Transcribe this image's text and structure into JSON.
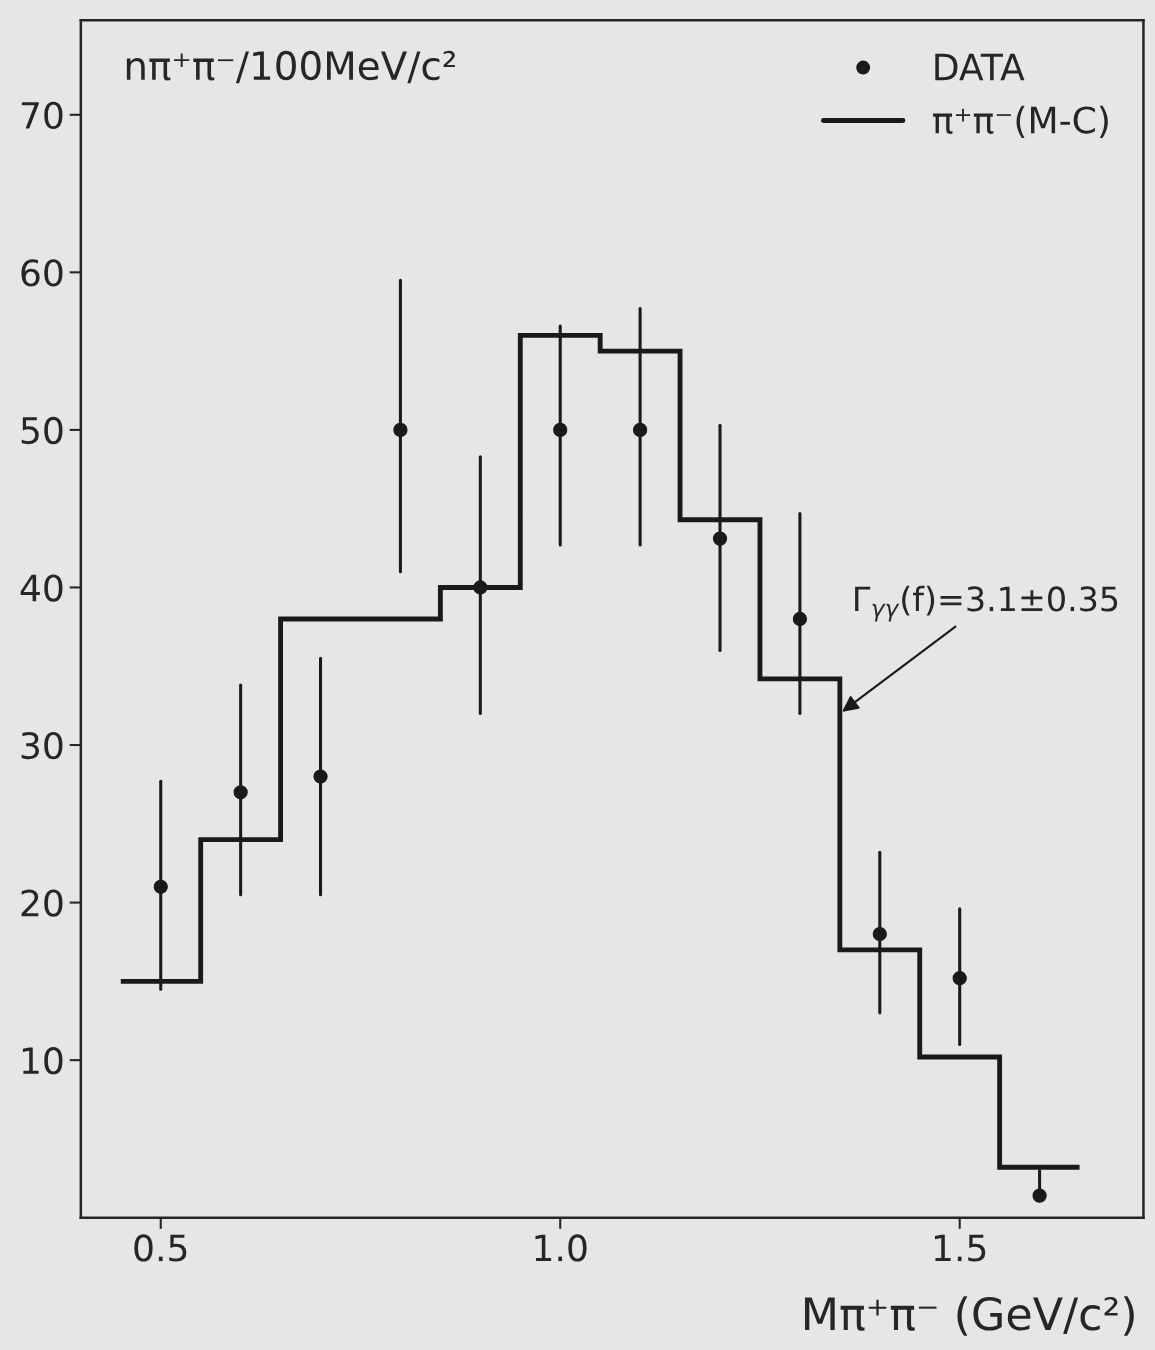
{
  "chart_data": {
    "type": "histogram",
    "ylabel": "nπ⁺π⁻/100MeV/c²",
    "xlabel": "Mπ⁺π⁻ (GeV/c²)",
    "xlim": [
      0.4,
      1.73
    ],
    "ylim": [
      0,
      76
    ],
    "xticks": [
      {
        "value": 0.5,
        "label": "0.5"
      },
      {
        "value": 1.0,
        "label": "1.0"
      },
      {
        "value": 1.5,
        "label": "1.5"
      }
    ],
    "yticks": [
      10,
      20,
      30,
      40,
      50,
      60,
      70
    ],
    "grid": false,
    "legend": "top right",
    "marker": "circle",
    "series": [
      {
        "type": "scatter",
        "name": "DATA",
        "color": "#1a1a1a",
        "x": [
          0.5,
          0.6,
          0.7,
          0.8,
          0.9,
          1.0,
          1.1,
          1.2,
          1.3,
          1.4,
          1.5,
          1.6
        ],
        "values": [
          21,
          27,
          28,
          50,
          40,
          50,
          50,
          43.1,
          38,
          18,
          15.2,
          1.4
        ],
        "errors": [
          [
            14.5,
            27.7
          ],
          [
            20.5,
            33.8
          ],
          [
            20.5,
            35.5
          ],
          [
            41,
            59.5
          ],
          [
            32,
            48.3
          ],
          [
            42.7,
            56.6
          ],
          [
            42.7,
            57.7
          ],
          [
            36,
            50.3
          ],
          [
            32,
            44.7
          ],
          [
            13,
            23.2
          ],
          [
            11,
            19.6
          ],
          [
            1.4,
            3.0
          ]
        ]
      },
      {
        "name": "π⁺π⁻(M-C)",
        "color": "#1a1a1a",
        "bins": [
          0.45,
          0.55,
          0.65,
          0.75,
          0.85,
          0.95,
          1.05,
          1.15,
          1.25,
          1.35,
          1.45,
          1.55,
          1.65
        ],
        "values": [
          15,
          24,
          38,
          38,
          40,
          56,
          55,
          44.3,
          34.2,
          17,
          10.2,
          3.2
        ]
      }
    ],
    "annotations": [
      {
        "text": "Γ$_{γγ}$(f)=3.1±0.35",
        "x": 1.35,
        "y": 32
      }
    ]
  }
}
